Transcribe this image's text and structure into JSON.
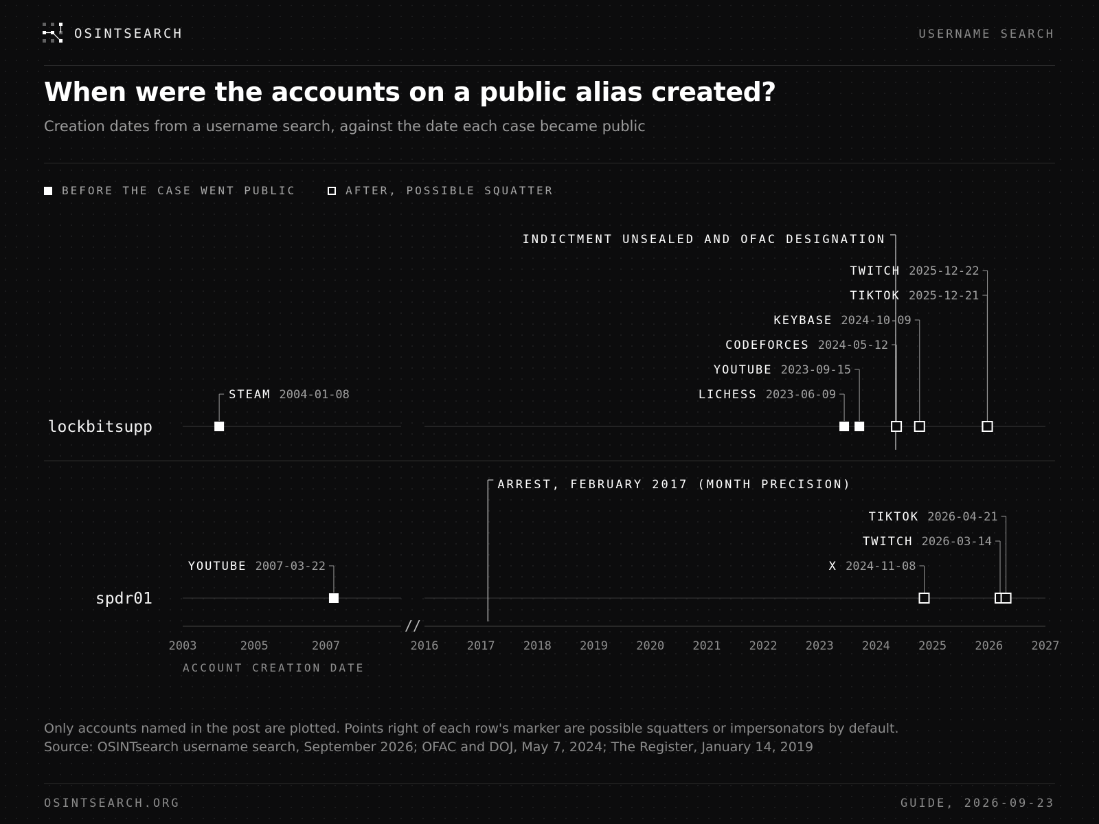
{
  "header": {
    "brand": "OSINTSEARCH",
    "mode": "USERNAME SEARCH",
    "logo_icon": "network-nodes-icon"
  },
  "title": "When were the accounts on a public alias created?",
  "subtitle": "Creation dates from a username search, against the date each case became public",
  "legend": {
    "before": "BEFORE THE CASE WENT PUBLIC",
    "after": "AFTER, POSSIBLE SQUATTER"
  },
  "footnote": {
    "line1": "Only accounts named in the post are plotted. Points right of each row's marker are possible squatters or impersonators by default.",
    "line2": "Source: OSINTsearch username search, September 2026; OFAC and DOJ, May 7, 2024; The Register, January 14, 2019"
  },
  "footer": {
    "site": "OSINTSEARCH.ORG",
    "edition": "GUIDE, 2026-09-23"
  },
  "colors": {
    "background": "#0c0c0d",
    "marker": "#ffffff",
    "muted_text": "#9a9a9a",
    "rule": "#2c2c2c"
  },
  "chart_data": {
    "type": "scatter",
    "xlabel": "ACCOUNT CREATION DATE",
    "x_axis": "date",
    "axis_break": {
      "label": "//",
      "segments": [
        {
          "start": "2003-01-01",
          "end": "2008-12-31",
          "ticks": [
            "2003",
            "2005",
            "2007"
          ]
        },
        {
          "start": "2016-01-01",
          "end": "2027-01-01",
          "ticks": [
            "2016",
            "2017",
            "2018",
            "2019",
            "2020",
            "2021",
            "2022",
            "2023",
            "2024",
            "2025",
            "2026",
            "2027"
          ]
        }
      ]
    },
    "grid": false,
    "legend_position": "top-left",
    "rows": [
      {
        "alias": "lockbitsupp",
        "event": {
          "label": "INDICTMENT UNSEALED AND OFAC DESIGNATION",
          "date": "2024-05-07"
        },
        "accounts": [
          {
            "platform": "STEAM",
            "date": "2004-01-08",
            "status": "before"
          },
          {
            "platform": "LICHESS",
            "date": "2023-06-09",
            "status": "before"
          },
          {
            "platform": "YOUTUBE",
            "date": "2023-09-15",
            "status": "before"
          },
          {
            "platform": "CODEFORCES",
            "date": "2024-05-12",
            "status": "after"
          },
          {
            "platform": "KEYBASE",
            "date": "2024-10-09",
            "status": "after"
          },
          {
            "platform": "TIKTOK",
            "date": "2025-12-21",
            "status": "after"
          },
          {
            "platform": "TWITCH",
            "date": "2025-12-22",
            "status": "after"
          }
        ]
      },
      {
        "alias": "spdr01",
        "event": {
          "label": "ARREST, FEBRUARY 2017 (MONTH PRECISION)",
          "date": "2017-02"
        },
        "accounts": [
          {
            "platform": "YOUTUBE",
            "date": "2007-03-22",
            "status": "before"
          },
          {
            "platform": "X",
            "date": "2024-11-08",
            "status": "after"
          },
          {
            "platform": "TWITCH",
            "date": "2026-03-14",
            "status": "after"
          },
          {
            "platform": "TIKTOK",
            "date": "2026-04-21",
            "status": "after"
          }
        ]
      }
    ]
  }
}
